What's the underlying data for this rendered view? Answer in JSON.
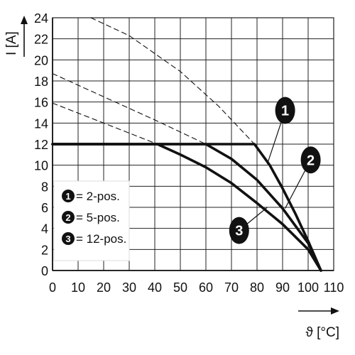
{
  "chart_data": {
    "type": "line",
    "xlabel": "ϑ [°C]",
    "ylabel": "I [A]",
    "xlim": [
      0,
      110
    ],
    "ylim": [
      0,
      24
    ],
    "x_ticks": [
      "0",
      "10",
      "20",
      "30",
      "40",
      "50",
      "60",
      "70",
      "80",
      "90",
      "100",
      "110"
    ],
    "y_ticks": [
      "0",
      "2",
      "4",
      "6",
      "8",
      "10",
      "12",
      "14",
      "16",
      "18",
      "20",
      "22",
      "24"
    ],
    "grid": true,
    "legend_position": "left",
    "legend": [
      {
        "badge": "1",
        "label": "= 2-pos."
      },
      {
        "badge": "2",
        "label": "= 5-pos."
      },
      {
        "badge": "3",
        "label": "= 12-pos."
      }
    ],
    "series": [
      {
        "id": "1",
        "style": "solid",
        "x": [
          0,
          79,
          85,
          90,
          95,
          100,
          105
        ],
        "y": [
          12,
          12,
          10,
          7.8,
          5.4,
          2.8,
          0
        ]
      },
      {
        "id": "2",
        "style": "solid",
        "x": [
          0,
          60,
          70,
          80,
          90,
          100,
          105
        ],
        "y": [
          12,
          12,
          10.6,
          8.6,
          5.9,
          2.6,
          0
        ]
      },
      {
        "id": "3",
        "style": "solid",
        "x": [
          0,
          41,
          50,
          60,
          70,
          80,
          90,
          100,
          105
        ],
        "y": [
          12,
          12,
          11,
          9.8,
          8.3,
          6.4,
          4.4,
          2,
          0
        ]
      },
      {
        "id": "1-ext",
        "style": "dashed",
        "x": [
          15,
          30,
          50,
          65,
          79
        ],
        "y": [
          24,
          22.3,
          18.9,
          15.6,
          12
        ]
      },
      {
        "id": "2-ext",
        "style": "dashed",
        "x": [
          0,
          20,
          40,
          60
        ],
        "y": [
          18.7,
          16.5,
          14.3,
          12
        ]
      },
      {
        "id": "3-ext",
        "style": "dashed",
        "x": [
          0,
          20,
          41
        ],
        "y": [
          15.9,
          14,
          12
        ]
      }
    ],
    "callouts": [
      {
        "badge": "1",
        "from": [
          91,
          15.2
        ],
        "to": [
          84,
          10.1
        ]
      },
      {
        "badge": "2",
        "from": [
          101,
          10.5
        ],
        "to": [
          91,
          5.9
        ]
      },
      {
        "badge": "3",
        "from": [
          73,
          3.8
        ],
        "to": [
          84,
          6
        ]
      }
    ]
  }
}
